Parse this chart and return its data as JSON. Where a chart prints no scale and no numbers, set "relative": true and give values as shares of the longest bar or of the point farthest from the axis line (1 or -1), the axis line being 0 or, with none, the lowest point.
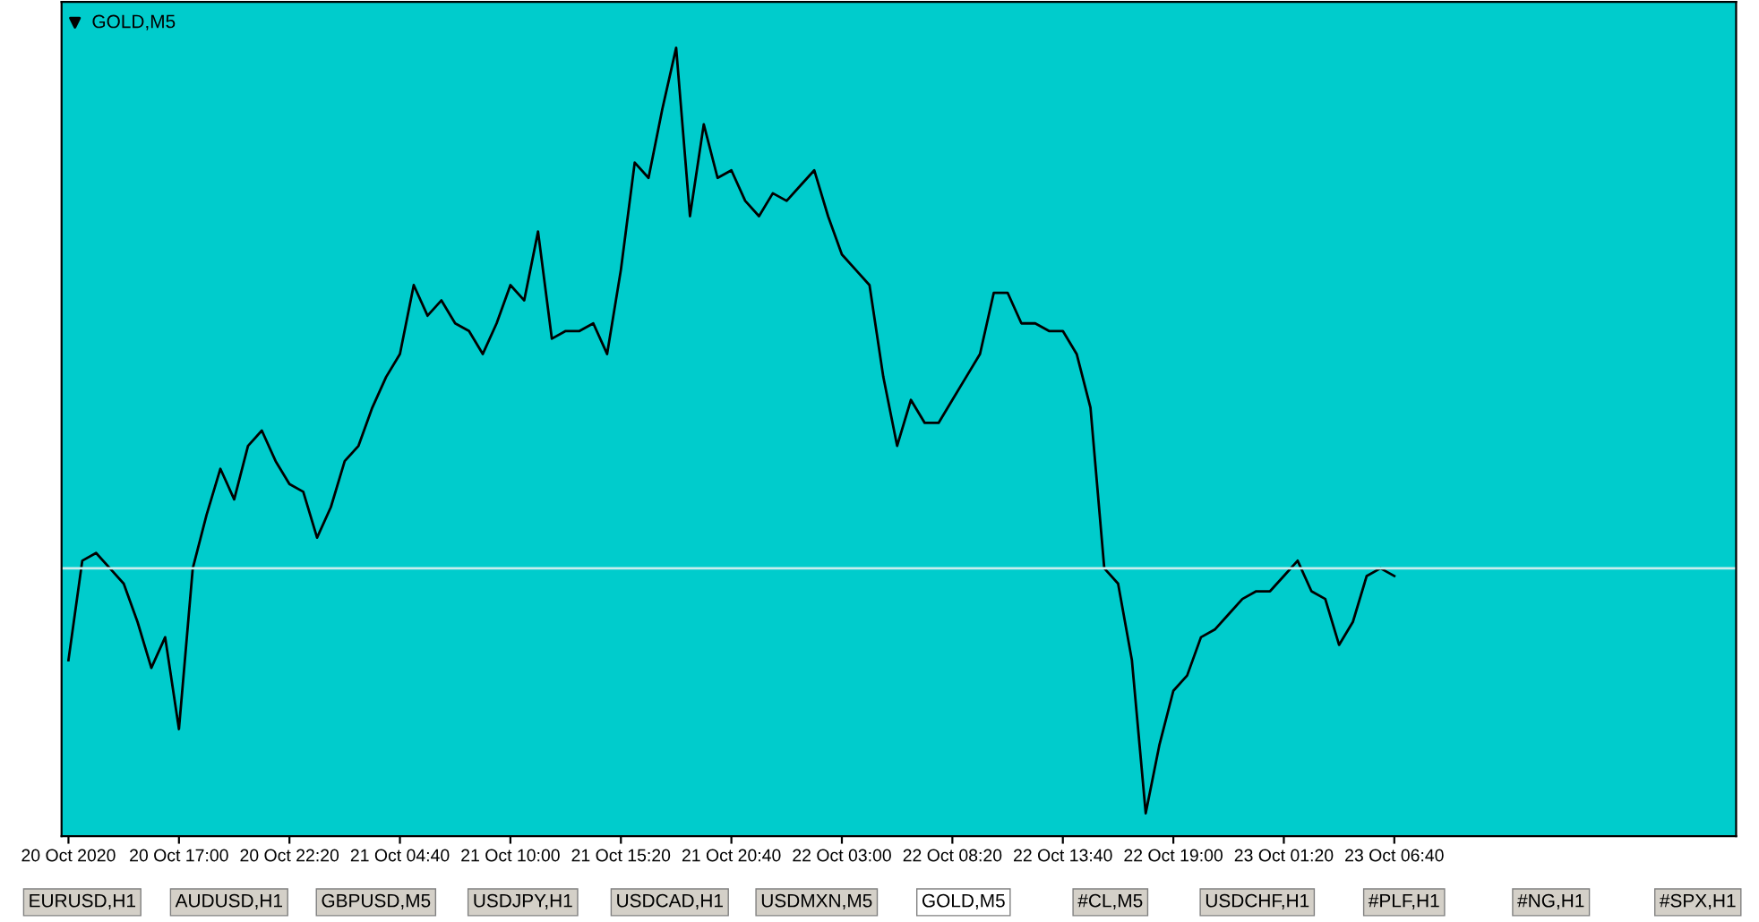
{
  "chart_data": {
    "type": "line",
    "title": "GOLD,M5",
    "relative": true,
    "color": "#000000",
    "categories": [
      "20 Oct 2020",
      null,
      null,
      null,
      null,
      null,
      null,
      null,
      "20 Oct 17:00",
      null,
      null,
      null,
      null,
      null,
      null,
      null,
      "20 Oct 22:20",
      null,
      null,
      null,
      null,
      null,
      null,
      null,
      "21 Oct 04:40",
      null,
      null,
      null,
      null,
      null,
      null,
      null,
      "21 Oct 10:00",
      null,
      null,
      null,
      null,
      null,
      null,
      null,
      "21 Oct 15:20",
      null,
      null,
      null,
      null,
      null,
      null,
      null,
      "21 Oct 20:40",
      null,
      null,
      null,
      null,
      null,
      null,
      null,
      "22 Oct 03:00",
      null,
      null,
      null,
      null,
      null,
      null,
      null,
      "22 Oct 08:20",
      null,
      null,
      null,
      null,
      null,
      null,
      null,
      "22 Oct 13:40",
      null,
      null,
      null,
      null,
      null,
      null,
      null,
      "22 Oct 19:00",
      null,
      null,
      null,
      null,
      null,
      null,
      null,
      "23 Oct 01:20",
      null,
      null,
      null,
      null,
      null,
      null,
      null,
      "23 Oct 06:40"
    ],
    "values": [
      0.2,
      0.33,
      0.34,
      0.32,
      0.3,
      0.25,
      0.19,
      0.23,
      0.11,
      0.32,
      0.39,
      0.45,
      0.41,
      0.48,
      0.5,
      0.46,
      0.43,
      0.42,
      0.36,
      0.4,
      0.46,
      0.48,
      0.53,
      0.57,
      0.6,
      0.69,
      0.65,
      0.67,
      0.64,
      0.63,
      0.6,
      0.64,
      0.69,
      0.67,
      0.76,
      0.62,
      0.63,
      0.63,
      0.64,
      0.6,
      0.71,
      0.85,
      0.83,
      0.92,
      1.0,
      0.78,
      0.9,
      0.83,
      0.84,
      0.8,
      0.78,
      0.81,
      0.8,
      0.82,
      0.84,
      0.78,
      0.73,
      0.71,
      0.69,
      0.57,
      0.48,
      0.54,
      0.51,
      0.51,
      0.54,
      0.57,
      0.6,
      0.68,
      0.68,
      0.64,
      0.64,
      0.63,
      0.63,
      0.6,
      0.53,
      0.32,
      0.3,
      0.2,
      0.0,
      0.09,
      0.16,
      0.18,
      0.23,
      0.24,
      0.26,
      0.28,
      0.29,
      0.29,
      0.31,
      0.33,
      0.29,
      0.28,
      0.22,
      0.25,
      0.31,
      0.32,
      0.31
    ],
    "ref_lines": [
      {
        "axis": "y",
        "value": 0.32,
        "color": "#c8eeee"
      }
    ],
    "grid": false,
    "legend": false,
    "annotations": [
      "EURUSD,H1",
      "AUDUSD,H1",
      "GBPUSD,M5",
      "USDJPY,H1",
      "USDCAD,H1",
      "USDMXN,M5",
      "GOLD,M5",
      "#CL,M5",
      "USDCHF,H1",
      "#PLF,H1",
      "#NG,H1",
      "#SPX,H1"
    ]
  }
}
